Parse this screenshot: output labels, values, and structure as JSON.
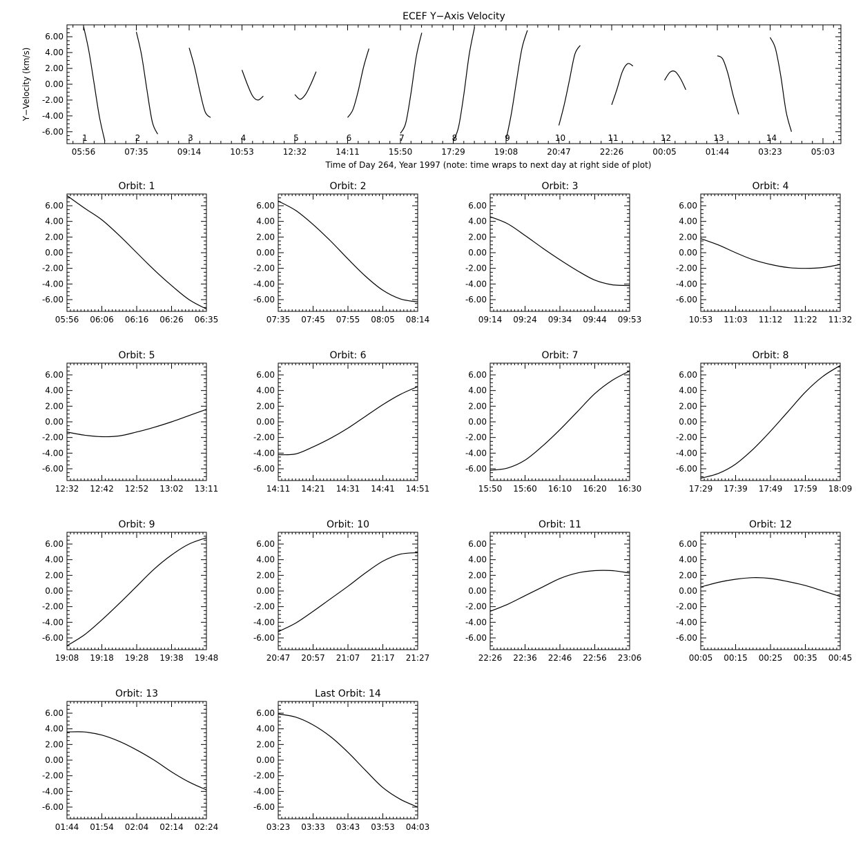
{
  "chart_data": [
    {
      "type": "line",
      "title": "ECEF Y−Axis Velocity",
      "xlabel": "Time of Day 264, Year 1997 (note: time wraps to next day at right side of plot)",
      "ylabel": "Y−Velocity (km/s)",
      "ylim": [
        -7.5,
        7.5
      ],
      "y_ticks": [
        "6.00",
        "4.00",
        "2.00",
        "0.00",
        "-2.00",
        "-4.00",
        "-6.00"
      ],
      "x_ticks": [
        "05:56",
        "07:35",
        "09:14",
        "10:53",
        "12:32",
        "14:11",
        "15:50",
        "17:29",
        "19:08",
        "20:47",
        "22:26",
        "00:05",
        "01:44",
        "03:23",
        "05:03"
      ],
      "orbit_labels": [
        "1",
        "2",
        "3",
        "4",
        "5",
        "6",
        "7",
        "8",
        "9",
        "10",
        "11",
        "12",
        "13",
        "14"
      ],
      "series": [
        {
          "x": [
            "05:56",
            "06:06",
            "06:16",
            "06:26",
            "06:35"
          ],
          "values": [
            7.3,
            4.2,
            0.0,
            -4.2,
            -7.2
          ]
        },
        {
          "x": [
            "07:35",
            "07:45",
            "07:55",
            "08:05",
            "08:14"
          ],
          "values": [
            6.6,
            3.6,
            -0.8,
            -4.8,
            -6.3
          ]
        },
        {
          "x": [
            "09:14",
            "09:24",
            "09:34",
            "09:44",
            "09:53"
          ],
          "values": [
            4.6,
            2.2,
            -0.9,
            -3.5,
            -4.2
          ]
        },
        {
          "x": [
            "10:53",
            "11:03",
            "11:12",
            "11:22",
            "11:32"
          ],
          "values": [
            1.8,
            0.0,
            -1.5,
            -2.0,
            -1.5
          ]
        },
        {
          "x": [
            "12:32",
            "12:42",
            "12:52",
            "13:02",
            "13:11"
          ],
          "values": [
            -1.3,
            -1.9,
            -1.3,
            0.0,
            1.6
          ]
        },
        {
          "x": [
            "14:11",
            "14:21",
            "14:31",
            "14:41",
            "14:51"
          ],
          "values": [
            -4.2,
            -3.2,
            -0.8,
            2.2,
            4.5
          ]
        },
        {
          "x": [
            "15:50",
            "15:60",
            "16:10",
            "16:20",
            "16:30"
          ],
          "values": [
            -6.2,
            -4.9,
            -1.0,
            3.6,
            6.5
          ]
        },
        {
          "x": [
            "17:29",
            "17:39",
            "17:49",
            "17:59",
            "18:09"
          ],
          "values": [
            -7.2,
            -5.4,
            -1.2,
            3.8,
            7.2
          ]
        },
        {
          "x": [
            "19:08",
            "19:18",
            "19:28",
            "19:38",
            "19:48"
          ],
          "values": [
            -7.0,
            -3.7,
            0.6,
            4.6,
            6.8
          ]
        },
        {
          "x": [
            "20:47",
            "20:57",
            "21:07",
            "21:17",
            "21:27"
          ],
          "values": [
            -5.2,
            -2.6,
            0.6,
            3.8,
            4.9
          ]
        },
        {
          "x": [
            "22:26",
            "22:36",
            "22:46",
            "22:56",
            "23:06"
          ],
          "values": [
            -2.6,
            -0.6,
            1.6,
            2.6,
            2.3
          ]
        },
        {
          "x": [
            "00:05",
            "00:15",
            "00:25",
            "00:35",
            "00:45"
          ],
          "values": [
            0.5,
            1.5,
            1.6,
            0.7,
            -0.7
          ]
        },
        {
          "x": [
            "01:44",
            "01:54",
            "02:04",
            "02:14",
            "02:24"
          ],
          "values": [
            3.6,
            3.2,
            1.3,
            -1.5,
            -3.8
          ]
        },
        {
          "x": [
            "03:23",
            "03:33",
            "03:43",
            "03:53",
            "04:03"
          ],
          "values": [
            5.9,
            4.5,
            1.0,
            -3.5,
            -6.0
          ]
        }
      ]
    },
    {
      "type": "line",
      "title": "Orbit: 1",
      "x_ticks": [
        "05:56",
        "06:06",
        "06:16",
        "06:26",
        "06:35"
      ],
      "y_ticks": [
        "6.00",
        "4.00",
        "2.00",
        "0.00",
        "-4.00",
        "-6.00"
      ],
      "y_ticks_full": [
        "6.00",
        "4.00",
        "2.00",
        "0.00",
        "-2.00",
        "-4.00",
        "-6.00"
      ],
      "ylim": [
        -7.5,
        7.5
      ],
      "values": [
        7.3,
        5.7,
        4.2,
        2.2,
        0.0,
        -2.2,
        -4.2,
        -6.0,
        -7.2
      ]
    },
    {
      "type": "line",
      "title": "Orbit: 2",
      "x_ticks": [
        "07:35",
        "07:45",
        "07:55",
        "08:05",
        "08:14"
      ],
      "y_ticks_full": [
        "6.00",
        "4.00",
        "2.00",
        "0.00",
        "-2.00",
        "-4.00",
        "-6.00"
      ],
      "ylim": [
        -7.5,
        7.5
      ],
      "values": [
        6.6,
        5.4,
        3.6,
        1.5,
        -0.8,
        -3.0,
        -4.8,
        -5.9,
        -6.3
      ]
    },
    {
      "type": "line",
      "title": "Orbit: 3",
      "x_ticks": [
        "09:14",
        "09:24",
        "09:34",
        "09:44",
        "09:53"
      ],
      "y_ticks_full": [
        "6.00",
        "4.00",
        "2.00",
        "0.00",
        "-2.00",
        "-4.00",
        "-6.00"
      ],
      "ylim": [
        -7.5,
        7.5
      ],
      "values": [
        4.6,
        3.7,
        2.2,
        0.6,
        -0.9,
        -2.3,
        -3.5,
        -4.1,
        -4.2
      ]
    },
    {
      "type": "line",
      "title": "Orbit: 4",
      "x_ticks": [
        "10:53",
        "11:03",
        "11:12",
        "11:22",
        "11:32"
      ],
      "y_ticks_full": [
        "6.00",
        "4.00",
        "2.00",
        "0.00",
        "-2.00",
        "-4.00",
        "-6.00"
      ],
      "ylim": [
        -7.5,
        7.5
      ],
      "values": [
        1.8,
        1.0,
        0.0,
        -0.9,
        -1.5,
        -1.9,
        -2.0,
        -1.9,
        -1.5
      ]
    },
    {
      "type": "line",
      "title": "Orbit: 5",
      "x_ticks": [
        "12:32",
        "12:42",
        "12:52",
        "13:02",
        "13:11"
      ],
      "y_ticks_full": [
        "6.00",
        "4.00",
        "2.00",
        "0.00",
        "-2.00",
        "-4.00",
        "-6.00"
      ],
      "ylim": [
        -7.5,
        7.5
      ],
      "values": [
        -1.3,
        -1.7,
        -1.9,
        -1.8,
        -1.3,
        -0.7,
        0.0,
        0.8,
        1.6
      ]
    },
    {
      "type": "line",
      "title": "Orbit: 6",
      "x_ticks": [
        "14:11",
        "14:21",
        "14:31",
        "14:41",
        "14:51"
      ],
      "y_ticks_full": [
        "6.00",
        "4.00",
        "2.00",
        "0.00",
        "-2.00",
        "-4.00",
        "-6.00"
      ],
      "ylim": [
        -7.5,
        7.5
      ],
      "values": [
        -4.2,
        -4.1,
        -3.2,
        -2.1,
        -0.8,
        0.7,
        2.2,
        3.5,
        4.5
      ]
    },
    {
      "type": "line",
      "title": "Orbit: 7",
      "x_ticks": [
        "15:50",
        "15:60",
        "16:10",
        "16:20",
        "16:30"
      ],
      "y_ticks_full": [
        "6.00",
        "4.00",
        "2.00",
        "0.00",
        "-2.00",
        "-4.00",
        "-6.00"
      ],
      "ylim": [
        -7.5,
        7.5
      ],
      "values": [
        -6.2,
        -5.9,
        -4.9,
        -3.1,
        -1.0,
        1.3,
        3.6,
        5.3,
        6.5
      ]
    },
    {
      "type": "line",
      "title": "Orbit: 8",
      "x_ticks": [
        "17:29",
        "17:39",
        "17:49",
        "17:59",
        "18:09"
      ],
      "y_ticks_full": [
        "6.00",
        "4.00",
        "2.00",
        "0.00",
        "-2.00",
        "-4.00",
        "-6.00"
      ],
      "ylim": [
        -7.5,
        7.5
      ],
      "values": [
        -7.2,
        -6.6,
        -5.4,
        -3.5,
        -1.2,
        1.3,
        3.8,
        5.8,
        7.2
      ]
    },
    {
      "type": "line",
      "title": "Orbit: 9",
      "x_ticks": [
        "19:08",
        "19:18",
        "19:28",
        "19:38",
        "19:48"
      ],
      "y_ticks_full": [
        "6.00",
        "4.00",
        "2.00",
        "0.00",
        "-2.00",
        "-4.00",
        "-6.00"
      ],
      "ylim": [
        -7.5,
        7.5
      ],
      "values": [
        -7.0,
        -5.6,
        -3.7,
        -1.6,
        0.6,
        2.8,
        4.6,
        6.0,
        6.8
      ]
    },
    {
      "type": "line",
      "title": "Orbit: 10",
      "x_ticks": [
        "20:47",
        "20:57",
        "21:07",
        "21:17",
        "21:27"
      ],
      "y_ticks_full": [
        "6.00",
        "4.00",
        "2.00",
        "0.00",
        "-2.00",
        "-4.00",
        "-6.00"
      ],
      "ylim": [
        -7.5,
        7.5
      ],
      "values": [
        -5.2,
        -4.1,
        -2.6,
        -1.0,
        0.6,
        2.3,
        3.8,
        4.7,
        4.9
      ]
    },
    {
      "type": "line",
      "title": "Orbit: 11",
      "x_ticks": [
        "22:26",
        "22:36",
        "22:46",
        "22:56",
        "23:06"
      ],
      "y_ticks_full": [
        "6.00",
        "4.00",
        "2.00",
        "0.00",
        "-2.00",
        "-4.00",
        "-6.00"
      ],
      "ylim": [
        -7.5,
        7.5
      ],
      "values": [
        -2.6,
        -1.7,
        -0.6,
        0.5,
        1.6,
        2.3,
        2.6,
        2.6,
        2.3
      ]
    },
    {
      "type": "line",
      "title": "Orbit: 12",
      "x_ticks": [
        "00:05",
        "00:15",
        "00:25",
        "00:35",
        "00:45"
      ],
      "y_ticks_full": [
        "6.00",
        "4.00",
        "2.00",
        "0.00",
        "-2.00",
        "-4.00",
        "-6.00"
      ],
      "ylim": [
        -7.5,
        7.5
      ],
      "values": [
        0.5,
        1.1,
        1.5,
        1.7,
        1.6,
        1.2,
        0.7,
        0.0,
        -0.7
      ]
    },
    {
      "type": "line",
      "title": "Orbit: 13",
      "x_ticks": [
        "01:44",
        "01:54",
        "02:04",
        "02:14",
        "02:24"
      ],
      "y_ticks_full": [
        "6.00",
        "4.00",
        "2.00",
        "0.00",
        "-2.00",
        "-4.00",
        "-6.00"
      ],
      "ylim": [
        -7.5,
        7.5
      ],
      "values": [
        3.6,
        3.6,
        3.2,
        2.4,
        1.3,
        0.0,
        -1.5,
        -2.8,
        -3.8
      ]
    },
    {
      "type": "line",
      "title": "Last Orbit: 14",
      "x_ticks": [
        "03:23",
        "03:33",
        "03:43",
        "03:53",
        "04:03"
      ],
      "y_ticks_full": [
        "6.00",
        "4.00",
        "2.00",
        "0.00",
        "-2.00",
        "-4.00",
        "-6.00"
      ],
      "ylim": [
        -7.5,
        7.5
      ],
      "values": [
        5.9,
        5.5,
        4.5,
        3.0,
        1.0,
        -1.3,
        -3.5,
        -5.0,
        -6.0
      ]
    }
  ]
}
